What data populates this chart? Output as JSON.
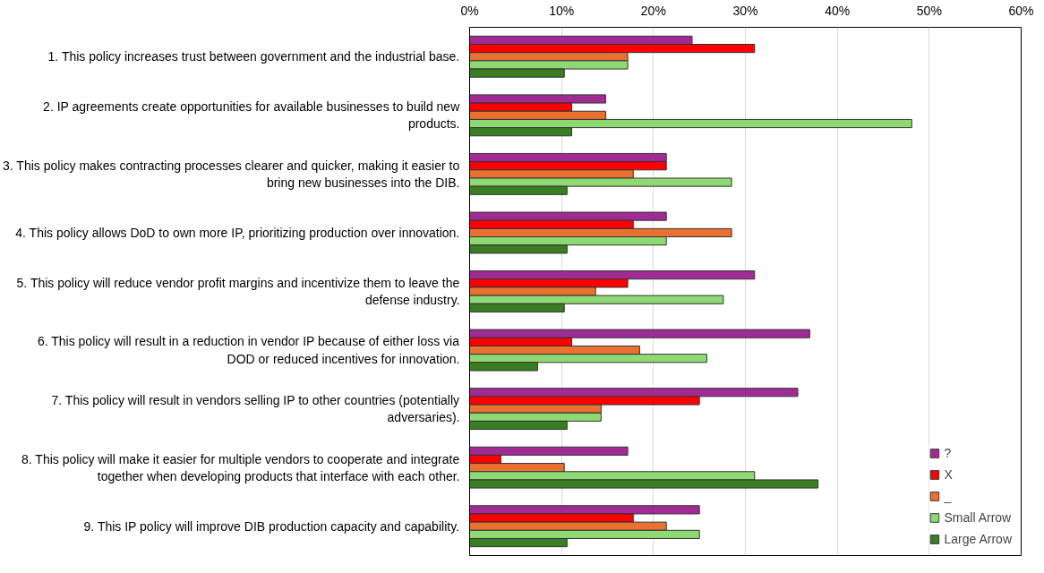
{
  "chart_data": {
    "type": "bar",
    "orientation": "horizontal",
    "categories": [
      "1. This policy increases trust between government and the industrial base.",
      "2. IP agreements create opportunities for available businesses to build new products.",
      "3. This policy makes contracting processes clearer and quicker, making it easier to bring new businesses into the DIB.",
      "4. This policy allows DoD to own more IP, prioritizing production over innovation.",
      "5. This policy will reduce vendor profit margins and incentivize them to leave the defense industry.",
      "6. This policy will result in a reduction in vendor IP because of either loss via DOD or reduced incentives for innovation.",
      "7. This policy will result in vendors selling IP to other countries (potentially adversaries).",
      "8. This policy will make it easier for multiple vendors to cooperate and integrate together when developing products that interface with each other.",
      "9. This IP policy will improve DIB production capacity and capability."
    ],
    "series": [
      {
        "name": "?",
        "color": "#a02b93",
        "values": [
          24.2,
          14.8,
          21.4,
          21.4,
          31.0,
          37.0,
          35.7,
          17.2,
          25.0
        ]
      },
      {
        "name": "X",
        "color": "#ff0000",
        "values": [
          31.0,
          11.1,
          21.4,
          17.8,
          17.2,
          11.1,
          25.0,
          3.4,
          17.8
        ]
      },
      {
        "name": "_",
        "color": "#e97132",
        "values": [
          17.2,
          14.8,
          17.8,
          28.5,
          13.7,
          18.5,
          14.3,
          10.3,
          21.4
        ]
      },
      {
        "name": "Small Arrow",
        "color": "#8ed973",
        "values": [
          17.2,
          48.1,
          28.5,
          21.4,
          27.6,
          25.8,
          14.3,
          31.0,
          25.0
        ]
      },
      {
        "name": "Large Arrow",
        "color": "#3b7d23",
        "values": [
          10.3,
          11.1,
          10.6,
          10.6,
          10.3,
          7.4,
          10.6,
          37.9,
          10.6
        ]
      }
    ],
    "xlim": [
      0,
      60
    ],
    "xticks": [
      {
        "value": 0,
        "label": "0%"
      },
      {
        "value": 10,
        "label": "10%"
      },
      {
        "value": 20,
        "label": "20%"
      },
      {
        "value": 30,
        "label": "30%"
      },
      {
        "value": 40,
        "label": "40%"
      },
      {
        "value": 50,
        "label": "50%"
      },
      {
        "value": 60,
        "label": "60%"
      }
    ],
    "grid": "x",
    "legend": "bottom right"
  }
}
